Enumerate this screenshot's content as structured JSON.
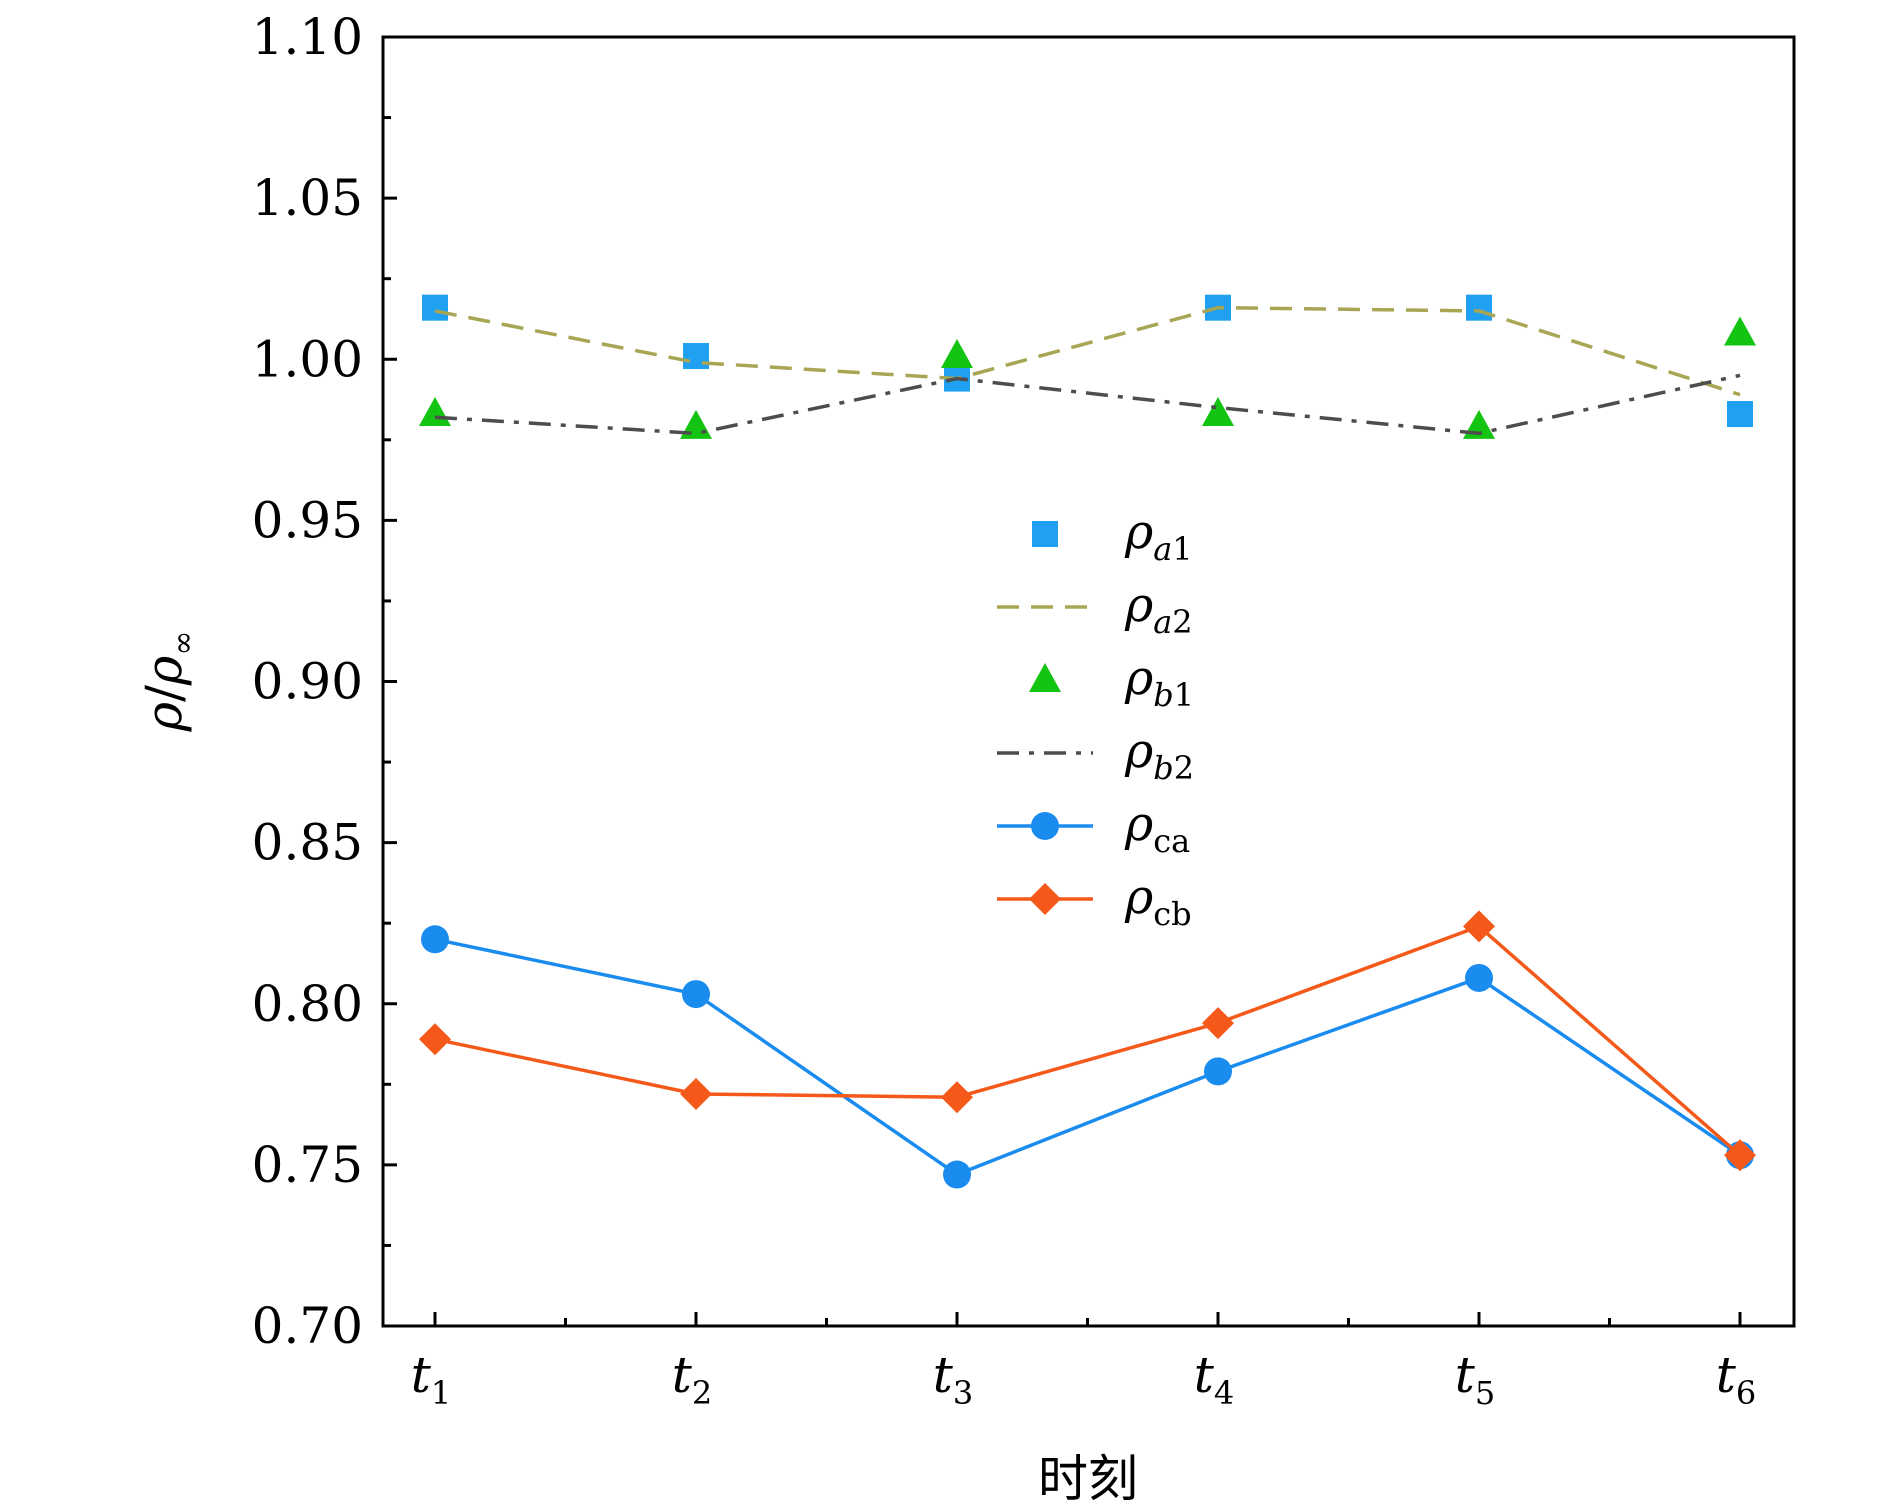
{
  "chart_data": {
    "type": "line",
    "xlabel": "时刻",
    "ylabel": "ρ/ρ∞",
    "ylabel_parts": {
      "num": "ρ",
      "den": "ρ",
      "den_sub": "∞"
    },
    "ylim": [
      0.7,
      1.1
    ],
    "y_ticks": [
      "0.70",
      "0.75",
      "0.80",
      "0.85",
      "0.90",
      "0.95",
      "1.00",
      "1.05",
      "1.10"
    ],
    "categories": [
      {
        "base": "t",
        "sub": "1"
      },
      {
        "base": "t",
        "sub": "2"
      },
      {
        "base": "t",
        "sub": "3"
      },
      {
        "base": "t",
        "sub": "4"
      },
      {
        "base": "t",
        "sub": "5"
      },
      {
        "base": "t",
        "sub": "6"
      }
    ],
    "series": [
      {
        "name": "ρa1",
        "base": "ρ",
        "sub": "a1",
        "marker": "square",
        "line": "none",
        "color": "#1fa0f0",
        "values": [
          1.016,
          1.001,
          0.994,
          1.016,
          1.016,
          0.983
        ]
      },
      {
        "name": "ρa2",
        "base": "ρ",
        "sub": "a2",
        "marker": "none",
        "line": "dashed",
        "color": "#a8a654",
        "values": [
          1.015,
          0.999,
          0.994,
          1.016,
          1.015,
          0.989
        ]
      },
      {
        "name": "ρb1",
        "base": "ρ",
        "sub": "b1",
        "marker": "triangle",
        "line": "none",
        "color": "#13c413",
        "values": [
          0.983,
          0.979,
          1.001,
          0.983,
          0.979,
          1.008
        ]
      },
      {
        "name": "ρb2",
        "base": "ρ",
        "sub": "b2",
        "marker": "none",
        "line": "dashdot",
        "color": "#4d4d4d",
        "values": [
          0.982,
          0.977,
          0.994,
          0.985,
          0.977,
          0.995
        ]
      },
      {
        "name": "ρca",
        "base": "ρ",
        "sub": "ca",
        "marker": "circle",
        "line": "solid",
        "color": "#1a8cf0",
        "values": [
          0.82,
          0.803,
          0.747,
          0.779,
          0.808,
          0.753
        ]
      },
      {
        "name": "ρcb",
        "base": "ρ",
        "sub": "cb",
        "marker": "diamond",
        "line": "solid",
        "color": "#f5591a",
        "values": [
          0.789,
          0.772,
          0.771,
          0.794,
          0.824,
          0.753
        ]
      }
    ],
    "legend_position": "center",
    "grid": false
  }
}
